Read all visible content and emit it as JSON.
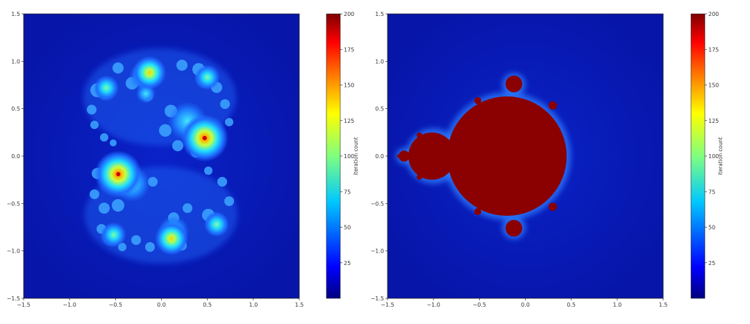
{
  "chart_data": [
    {
      "type": "heatmap",
      "title": "",
      "xlabel": "",
      "ylabel": "",
      "xlim": [
        -1.5,
        1.5
      ],
      "ylim": [
        -1.5,
        1.5
      ],
      "x_ticks": [
        "−1.5",
        "−1.0",
        "−0.5",
        "0.0",
        "0.5",
        "1.0",
        "1.5"
      ],
      "y_ticks": [
        "1.5",
        "1.0",
        "0.5",
        "0.0",
        "−0.5",
        "−1.0",
        "−1.5"
      ],
      "colormap": "jet",
      "colorbar": {
        "label": "iteration count",
        "range": [
          0,
          200
        ],
        "ticks": [
          "200",
          "175",
          "150",
          "125",
          "100",
          "75",
          "50",
          "25"
        ]
      },
      "grid": false,
      "peak_points": [
        {
          "x": 0.47,
          "y": 0.19,
          "level": 200
        },
        {
          "x": -0.47,
          "y": -0.19,
          "level": 200
        },
        {
          "x": -0.13,
          "y": 0.88,
          "level": 150
        },
        {
          "x": 0.11,
          "y": -0.87,
          "level": 150
        },
        {
          "x": 0.5,
          "y": 0.83,
          "level": 110
        },
        {
          "x": -0.52,
          "y": -0.83,
          "level": 110
        },
        {
          "x": -0.6,
          "y": 0.72,
          "level": 90
        },
        {
          "x": 0.6,
          "y": -0.72,
          "level": 90
        }
      ]
    },
    {
      "type": "heatmap",
      "title": "",
      "xlabel": "",
      "ylabel": "",
      "xlim": [
        -1.5,
        1.5
      ],
      "ylim": [
        -1.5,
        1.5
      ],
      "x_ticks": [
        "−1.5",
        "−1.0",
        "−0.5",
        "0.0",
        "0.5",
        "1.0",
        "1.5"
      ],
      "y_ticks": [
        "1.5",
        "1.0",
        "0.5",
        "0.0",
        "−0.5",
        "−1.0",
        "−1.5"
      ],
      "colormap": "jet",
      "colorbar": {
        "label": "iteration count",
        "range": [
          0,
          200
        ],
        "ticks": [
          "200",
          "175",
          "150",
          "125",
          "100",
          "75",
          "50",
          "25"
        ]
      },
      "grid": false,
      "max_iteration_region": "Mandelbrot set (value 200)"
    }
  ],
  "colors": {
    "background_low": "#0a1ab0",
    "max_value": "#8b0000",
    "jet_stops": [
      "#00007f",
      "#0000ff",
      "#007fff",
      "#00ffff",
      "#7fff7f",
      "#ffff00",
      "#ff7f00",
      "#ff0000",
      "#7f0000"
    ]
  }
}
